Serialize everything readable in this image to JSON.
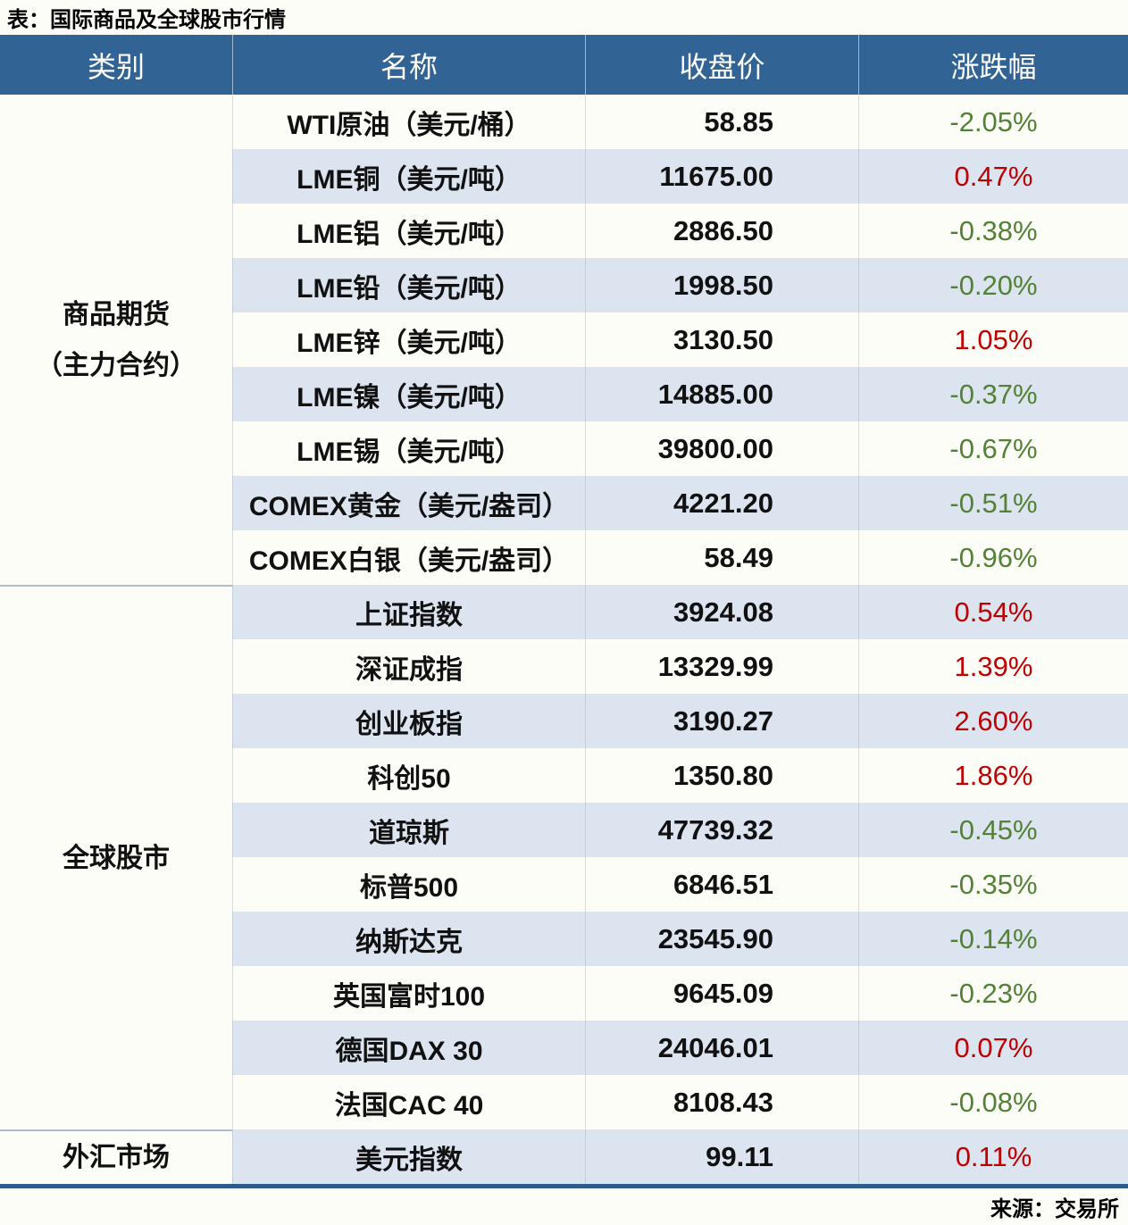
{
  "title": "表：国际商品及全球股市行情",
  "source": "来源：交易所",
  "colors": {
    "header_bg": "#316394",
    "row_alt_bg": "#DCE4EF",
    "row_bg": "#FDFDF8",
    "positive": "#C00000",
    "negative": "#538135",
    "bottom_line": "#2E5B8D"
  },
  "table": {
    "columns": [
      "类别",
      "名称",
      "收盘价",
      "涨跌幅"
    ],
    "sections": [
      {
        "category": "商品期货\n（主力合约）",
        "rows": [
          {
            "name": "WTI原油（美元/桶）",
            "close": "58.85",
            "change": "-2.05%",
            "direction": "down"
          },
          {
            "name": "LME铜（美元/吨）",
            "close": "11675.00",
            "change": "0.47%",
            "direction": "up"
          },
          {
            "name": "LME铝（美元/吨）",
            "close": "2886.50",
            "change": "-0.38%",
            "direction": "down"
          },
          {
            "name": "LME铅（美元/吨）",
            "close": "1998.50",
            "change": "-0.20%",
            "direction": "down"
          },
          {
            "name": "LME锌（美元/吨）",
            "close": "3130.50",
            "change": "1.05%",
            "direction": "up"
          },
          {
            "name": "LME镍（美元/吨）",
            "close": "14885.00",
            "change": "-0.37%",
            "direction": "down"
          },
          {
            "name": "LME锡（美元/吨）",
            "close": "39800.00",
            "change": "-0.67%",
            "direction": "down"
          },
          {
            "name": "COMEX黄金（美元/盎司）",
            "close": "4221.20",
            "change": "-0.51%",
            "direction": "down"
          },
          {
            "name": "COMEX白银（美元/盎司）",
            "close": "58.49",
            "change": "-0.96%",
            "direction": "down"
          }
        ]
      },
      {
        "category": "全球股市",
        "rows": [
          {
            "name": "上证指数",
            "close": "3924.08",
            "change": "0.54%",
            "direction": "up"
          },
          {
            "name": "深证成指",
            "close": "13329.99",
            "change": "1.39%",
            "direction": "up"
          },
          {
            "name": "创业板指",
            "close": "3190.27",
            "change": "2.60%",
            "direction": "up"
          },
          {
            "name": "科创50",
            "close": "1350.80",
            "change": "1.86%",
            "direction": "up"
          },
          {
            "name": "道琼斯",
            "close": "47739.32",
            "change": "-0.45%",
            "direction": "down"
          },
          {
            "name": "标普500",
            "close": "6846.51",
            "change": "-0.35%",
            "direction": "down"
          },
          {
            "name": "纳斯达克",
            "close": "23545.90",
            "change": "-0.14%",
            "direction": "down"
          },
          {
            "name": "英国富时100",
            "close": "9645.09",
            "change": "-0.23%",
            "direction": "down"
          },
          {
            "name": "德国DAX 30",
            "close": "24046.01",
            "change": "0.07%",
            "direction": "up"
          },
          {
            "name": "法国CAC 40",
            "close": "8108.43",
            "change": "-0.08%",
            "direction": "down"
          }
        ]
      },
      {
        "category": "外汇市场",
        "rows": [
          {
            "name": "美元指数",
            "close": "99.11",
            "change": "0.11%",
            "direction": "up"
          }
        ]
      }
    ]
  },
  "chart_data": {
    "type": "table",
    "title": "表：国际商品及全球股市行情",
    "columns": [
      "类别",
      "名称",
      "收盘价",
      "涨跌幅"
    ],
    "rows": [
      [
        "商品期货（主力合约）",
        "WTI原油（美元/桶）",
        58.85,
        "-2.05%"
      ],
      [
        "商品期货（主力合约）",
        "LME铜（美元/吨）",
        11675.0,
        "0.47%"
      ],
      [
        "商品期货（主力合约）",
        "LME铝（美元/吨）",
        2886.5,
        "-0.38%"
      ],
      [
        "商品期货（主力合约）",
        "LME铅（美元/吨）",
        1998.5,
        "-0.20%"
      ],
      [
        "商品期货（主力合约）",
        "LME锌（美元/吨）",
        3130.5,
        "1.05%"
      ],
      [
        "商品期货（主力合约）",
        "LME镍（美元/吨）",
        14885.0,
        "-0.37%"
      ],
      [
        "商品期货（主力合约）",
        "LME锡（美元/吨）",
        39800.0,
        "-0.67%"
      ],
      [
        "商品期货（主力合约）",
        "COMEX黄金（美元/盎司）",
        4221.2,
        "-0.51%"
      ],
      [
        "商品期货（主力合约）",
        "COMEX白银（美元/盎司）",
        58.49,
        "-0.96%"
      ],
      [
        "全球股市",
        "上证指数",
        3924.08,
        "0.54%"
      ],
      [
        "全球股市",
        "深证成指",
        13329.99,
        "1.39%"
      ],
      [
        "全球股市",
        "创业板指",
        3190.27,
        "2.60%"
      ],
      [
        "全球股市",
        "科创50",
        1350.8,
        "1.86%"
      ],
      [
        "全球股市",
        "道琼斯",
        47739.32,
        "-0.45%"
      ],
      [
        "全球股市",
        "标普500",
        6846.51,
        "-0.35%"
      ],
      [
        "全球股市",
        "纳斯达克",
        23545.9,
        "-0.14%"
      ],
      [
        "全球股市",
        "英国富时100",
        9645.09,
        "-0.23%"
      ],
      [
        "全球股市",
        "德国DAX 30",
        24046.01,
        "0.07%"
      ],
      [
        "全球股市",
        "法国CAC 40",
        8108.43,
        "-0.08%"
      ],
      [
        "外汇市场",
        "美元指数",
        99.11,
        "0.11%"
      ]
    ],
    "source": "来源：交易所"
  }
}
